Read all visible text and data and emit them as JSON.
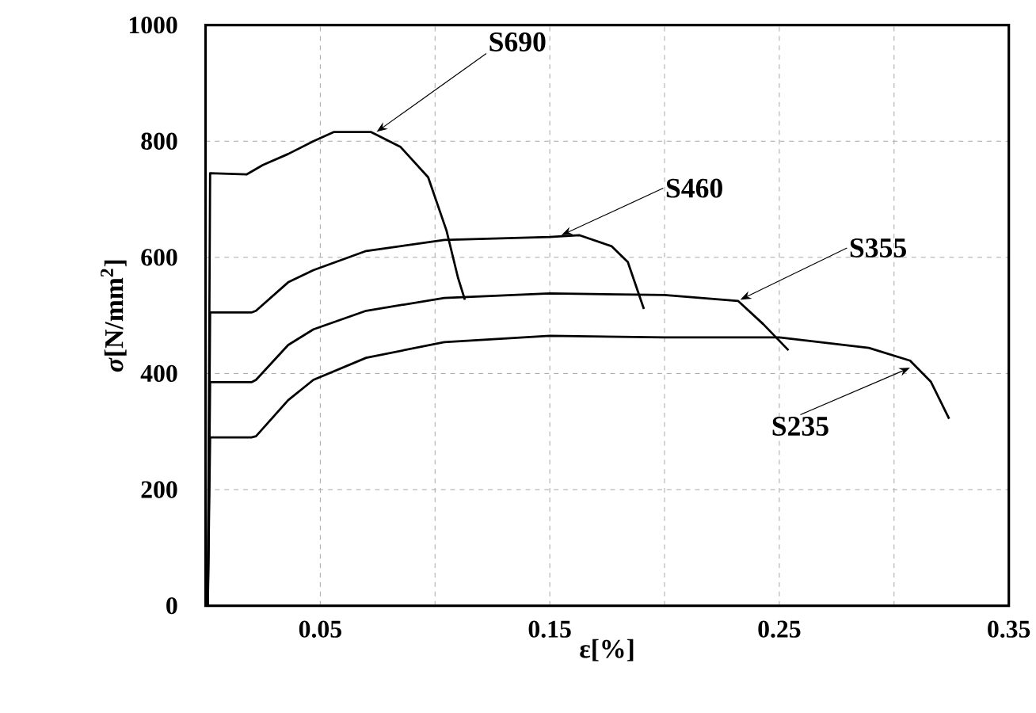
{
  "chart_data": {
    "type": "line",
    "xlabel": "ε[%]",
    "ylabel": "*σ*[N/mm$^{2}$]",
    "xlim": [
      0,
      0.35
    ],
    "ylim": [
      0,
      1000
    ],
    "xticks": [
      {
        "value": 0.05,
        "label": "0.05"
      },
      {
        "value": 0.1,
        "label": null
      },
      {
        "value": 0.15,
        "label": "0.15"
      },
      {
        "value": 0.2,
        "label": null
      },
      {
        "value": 0.25,
        "label": "0.25"
      },
      {
        "value": 0.3,
        "label": null
      },
      {
        "value": 0.35,
        "label": "0.35"
      }
    ],
    "yticks": [
      0,
      200,
      400,
      600,
      800,
      1000
    ],
    "grid": true,
    "marker": "none",
    "line_style": "solid",
    "series": [
      {
        "color": "#000000",
        "x": [
          0.001,
          0.002,
          0.018,
          0.025,
          0.036,
          0.047,
          0.056,
          0.072,
          0.085,
          0.097,
          0.105,
          0.11,
          0.113
        ],
        "values": [
          0,
          745,
          743,
          759,
          778,
          800,
          816,
          816,
          790,
          738,
          646,
          565,
          527
        ]
      },
      {
        "color": "#000000",
        "x": [
          0.001,
          0.002,
          0.02,
          0.022,
          0.036,
          0.047,
          0.07,
          0.104,
          0.15,
          0.163,
          0.177,
          0.184,
          0.191
        ],
        "values": [
          0,
          505,
          505,
          508,
          557,
          578,
          611,
          630,
          635,
          638,
          619,
          592,
          511
        ]
      },
      {
        "color": "#000000",
        "x": [
          0.001,
          0.002,
          0.02,
          0.022,
          0.036,
          0.047,
          0.07,
          0.104,
          0.15,
          0.2,
          0.232,
          0.243,
          0.254
        ],
        "values": [
          0,
          385,
          385,
          389,
          449,
          476,
          508,
          530,
          538,
          535,
          525,
          485,
          440
        ]
      },
      {
        "color": "#000000",
        "x": [
          0.001,
          0.002,
          0.02,
          0.022,
          0.036,
          0.047,
          0.07,
          0.104,
          0.15,
          0.2,
          0.25,
          0.289,
          0.307,
          0.316,
          0.324
        ],
        "values": [
          0,
          290,
          290,
          292,
          354,
          389,
          427,
          454,
          465,
          462,
          462,
          444,
          422,
          386,
          322
        ]
      }
    ],
    "annotations": [
      {
        "text": "S690",
        "x": 0.0745,
        "y": 816
      },
      {
        "text": "S460",
        "x": 0.155,
        "y": 638
      },
      {
        "text": "S355",
        "x": 0.233,
        "y": 527
      },
      {
        "text": "S235",
        "x": 0.307,
        "y": 410
      }
    ]
  }
}
